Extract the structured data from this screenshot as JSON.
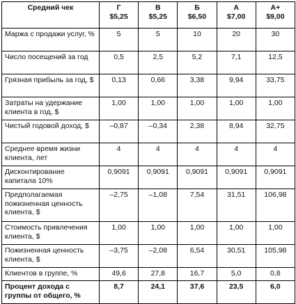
{
  "table": {
    "corner_label": "Средний чек",
    "segments": [
      {
        "grade": "Г",
        "price": "$5,25"
      },
      {
        "grade": "В",
        "price": "$5,25"
      },
      {
        "grade": "Б",
        "price": "$6,50"
      },
      {
        "grade": "А",
        "price": "$7,00"
      },
      {
        "grade": "А+",
        "price": "$9,00"
      }
    ],
    "rows": [
      {
        "label": "Маржа с продажи услуг, %",
        "values": [
          "5",
          "5",
          "10",
          "20",
          "30"
        ],
        "lines": 2
      },
      {
        "label": "Число посещений за год",
        "values": [
          "0,5",
          "2,5",
          "5,2",
          "7,1",
          "12,5"
        ],
        "lines": 2
      },
      {
        "label": "Грязная прибыль за год, $",
        "values": [
          "0,13",
          "0,66",
          "3,38",
          "9,94",
          "33,75"
        ],
        "lines": 2
      },
      {
        "label": "Затраты на удержание клиента в год, $",
        "values": [
          "1,00",
          "1,00",
          "1,00",
          "1,00",
          "1,00"
        ],
        "lines": 2
      },
      {
        "label": "Чистый годовой доход, $",
        "values": [
          "–0,87",
          "–0,34",
          "2,38",
          "8,94",
          "32,75"
        ],
        "lines": 2
      },
      {
        "label": "Среднее время жизни клиента, лет",
        "values": [
          "4",
          "4",
          "4",
          "4",
          "4"
        ],
        "lines": 2
      },
      {
        "label": "Дисконтирование капитала 10%",
        "values": [
          "0,9091",
          "0,9091",
          "0,9091",
          "0,9091",
          "0,9091"
        ],
        "lines": 2
      },
      {
        "label": "Предполагаемая пожизненная ценность клиента, $",
        "values": [
          "–2,75",
          "–1,08",
          "7,54",
          "31,51",
          "106,98"
        ],
        "lines": 3
      },
      {
        "label": "Стоимость привлечения клиента, $",
        "values": [
          "1,00",
          "1,00",
          "1,00",
          "1,00",
          "1,00"
        ],
        "lines": 2
      },
      {
        "label": "Пожизненная ценность клиента, $",
        "values": [
          "–3,75",
          "–2,08",
          "6,54",
          "30,51",
          "105,98"
        ],
        "lines": 2
      },
      {
        "label": "Клиентов в группе, %",
        "values": [
          "49,6",
          "27,8",
          "16,7",
          "5,0",
          "0,8"
        ],
        "lines": 1
      },
      {
        "label": "Процент дохода с группы от общего, %",
        "values": [
          "8,7",
          "24,1",
          "37,6",
          "23,5",
          "6,0"
        ],
        "lines": 2,
        "bold": true
      }
    ]
  }
}
